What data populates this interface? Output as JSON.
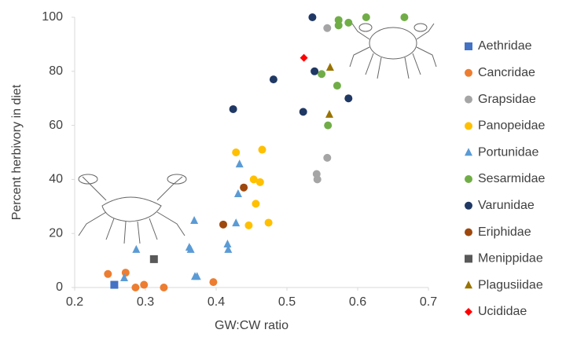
{
  "chart_data": {
    "type": "scatter",
    "x_label": "GW:CW ratio",
    "y_label": "Percent herbivory  in diet",
    "xlim": [
      0.2,
      0.7
    ],
    "xticks": [
      0.2,
      0.3,
      0.4,
      0.5,
      0.6,
      0.7
    ],
    "ylim": [
      0,
      100
    ],
    "yticks": [
      0,
      20,
      40,
      60,
      80,
      100
    ],
    "series": [
      {
        "name": "Aethridae",
        "color": "#4472c4",
        "marker": "square",
        "x": [
          0.256
        ],
        "y": [
          1
        ]
      },
      {
        "name": "Cancridae",
        "color": "#ed7d31",
        "marker": "circle",
        "x": [
          0.247,
          0.272,
          0.286,
          0.298,
          0.326,
          0.396
        ],
        "y": [
          5,
          5.5,
          0,
          1,
          0,
          2
        ]
      },
      {
        "name": "Grapsidae",
        "color": "#a5a5a5",
        "marker": "circle",
        "x": [
          0.557,
          0.542,
          0.543,
          0.557
        ],
        "y": [
          96,
          42,
          40,
          48
        ]
      },
      {
        "name": "Panopeidae",
        "color": "#ffc000",
        "marker": "circle",
        "x": [
          0.428,
          0.465,
          0.453,
          0.462,
          0.456,
          0.446,
          0.474
        ],
        "y": [
          50,
          51,
          40,
          39,
          31,
          23,
          24
        ]
      },
      {
        "name": "Portunidae",
        "color": "#5b9bd5",
        "marker": "triangle",
        "x": [
          0.433,
          0.431,
          0.428,
          0.416,
          0.417,
          0.369,
          0.362,
          0.364,
          0.37,
          0.373,
          0.287,
          0.27
        ],
        "y": [
          45.6,
          34.6,
          23.8,
          16,
          14,
          24.7,
          14.8,
          14,
          4,
          4,
          14,
          3.5
        ]
      },
      {
        "name": "Sesarmidae",
        "color": "#70ad47",
        "marker": "circle",
        "x": [
          0.573,
          0.573,
          0.587,
          0.612,
          0.666,
          0.549,
          0.571,
          0.558
        ],
        "y": [
          99,
          97,
          98,
          100,
          100,
          79,
          74.7,
          60
        ]
      },
      {
        "name": "Varunidae",
        "color": "#203864",
        "marker": "circle",
        "x": [
          0.536,
          0.539,
          0.481,
          0.424,
          0.523,
          0.587
        ],
        "y": [
          100,
          80,
          77,
          66,
          65,
          70
        ]
      },
      {
        "name": "Eriphidae",
        "color": "#9e480e",
        "marker": "circle",
        "x": [
          0.439,
          0.41
        ],
        "y": [
          37,
          23.3
        ]
      },
      {
        "name": "Menippidae",
        "color": "#595959",
        "marker": "square",
        "x": [
          0.312
        ],
        "y": [
          10.5
        ]
      },
      {
        "name": "Plagusiidae",
        "color": "#997300",
        "marker": "triangle",
        "x": [
          0.561,
          0.56
        ],
        "y": [
          81.4,
          64
        ]
      },
      {
        "name": "Ucididae",
        "color": "#ff0000",
        "marker": "diamond",
        "x": [
          0.524
        ],
        "y": [
          85
        ]
      }
    ]
  }
}
